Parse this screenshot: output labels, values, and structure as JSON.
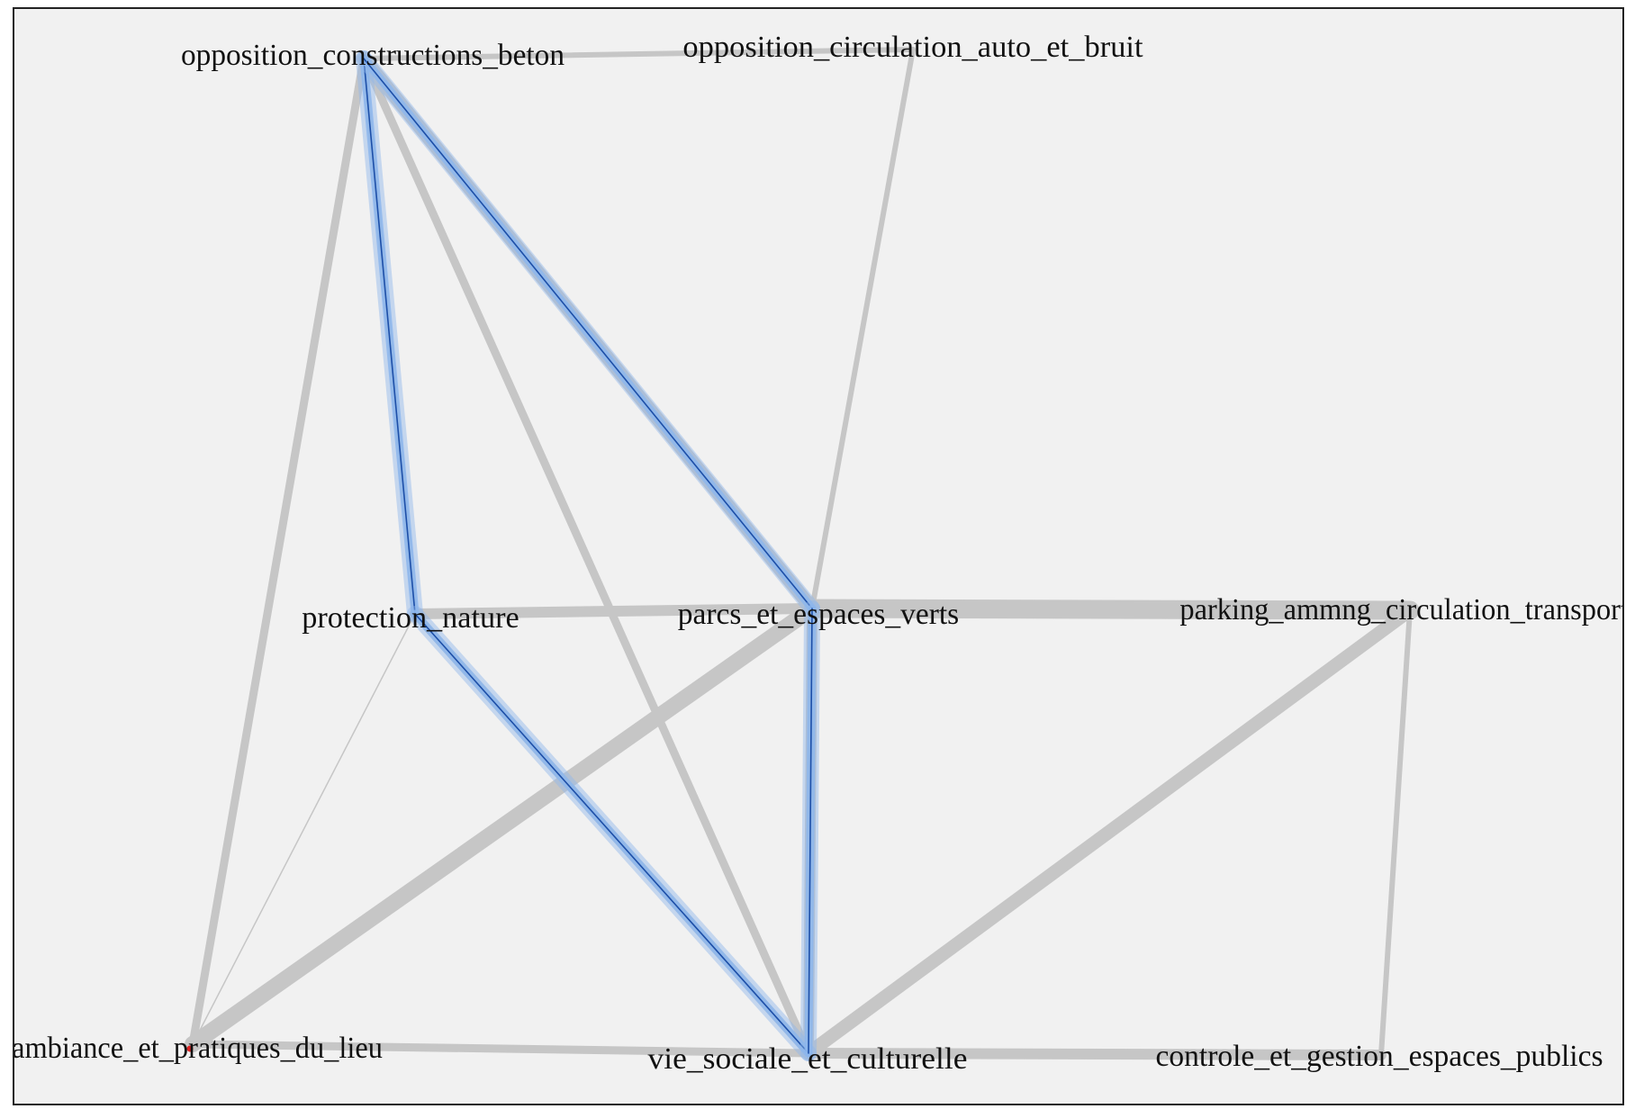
{
  "colors": {
    "background": "#f1f1f1",
    "edge": "#c6c6c6",
    "highlight_glow": "#8db6ec",
    "highlight_line": "#1d4fa8",
    "text": "#111111",
    "marker": "#dd2222"
  },
  "nodes": [
    {
      "id": "opposition_constructions_beton",
      "label": "opposition_constructions_beton"
    },
    {
      "id": "opposition_circulation_auto_et_bruit",
      "label": "opposition_circulation_auto_et_bruit"
    },
    {
      "id": "protection_nature",
      "label": "protection_nature"
    },
    {
      "id": "parcs_et_espaces_verts",
      "label": "parcs_et_espaces_verts"
    },
    {
      "id": "parking_ammng_circulation_transports",
      "label": "parking_ammng_circulation_transports"
    },
    {
      "id": "ambiance_et_pratiques_du_lieu",
      "label": "ambiance_et_pratiques_du_lieu"
    },
    {
      "id": "vie_sociale_et_culturelle",
      "label": "vie_sociale_et_culturelle"
    },
    {
      "id": "controle_et_gestion_espaces_publics",
      "label": "controle_et_gestion_espaces_publics"
    }
  ],
  "edges": [
    {
      "source": "opposition_constructions_beton",
      "target": "opposition_circulation_auto_et_bruit",
      "weight": 2,
      "highlighted": false
    },
    {
      "source": "opposition_constructions_beton",
      "target": "ambiance_et_pratiques_du_lieu",
      "weight": 3,
      "highlighted": false
    },
    {
      "source": "opposition_constructions_beton",
      "target": "vie_sociale_et_culturelle",
      "weight": 3,
      "highlighted": false
    },
    {
      "source": "opposition_constructions_beton",
      "target": "protection_nature",
      "weight": 2,
      "highlighted": true
    },
    {
      "source": "opposition_constructions_beton",
      "target": "parcs_et_espaces_verts",
      "weight": 5,
      "highlighted": true
    },
    {
      "source": "opposition_circulation_auto_et_bruit",
      "target": "parcs_et_espaces_verts",
      "weight": 2,
      "highlighted": false
    },
    {
      "source": "protection_nature",
      "target": "parcs_et_espaces_verts",
      "weight": 4,
      "highlighted": false
    },
    {
      "source": "protection_nature",
      "target": "ambiance_et_pratiques_du_lieu",
      "weight": 0.5,
      "highlighted": false
    },
    {
      "source": "protection_nature",
      "target": "vie_sociale_et_culturelle",
      "weight": 3,
      "highlighted": true
    },
    {
      "source": "parcs_et_espaces_verts",
      "target": "parking_ammng_circulation_transports",
      "weight": 7,
      "highlighted": false
    },
    {
      "source": "parcs_et_espaces_verts",
      "target": "ambiance_et_pratiques_du_lieu",
      "weight": 6,
      "highlighted": false
    },
    {
      "source": "parcs_et_espaces_verts",
      "target": "vie_sociale_et_culturelle",
      "weight": 4,
      "highlighted": true
    },
    {
      "source": "parking_ammng_circulation_transports",
      "target": "vie_sociale_et_culturelle",
      "weight": 5,
      "highlighted": false
    },
    {
      "source": "parking_ammng_circulation_transports",
      "target": "controle_et_gestion_espaces_publics",
      "weight": 2,
      "highlighted": false
    },
    {
      "source": "ambiance_et_pratiques_du_lieu",
      "target": "vie_sociale_et_culturelle",
      "weight": 3,
      "highlighted": false
    },
    {
      "source": "vie_sociale_et_culturelle",
      "target": "controle_et_gestion_espaces_publics",
      "weight": 4,
      "highlighted": false
    }
  ]
}
